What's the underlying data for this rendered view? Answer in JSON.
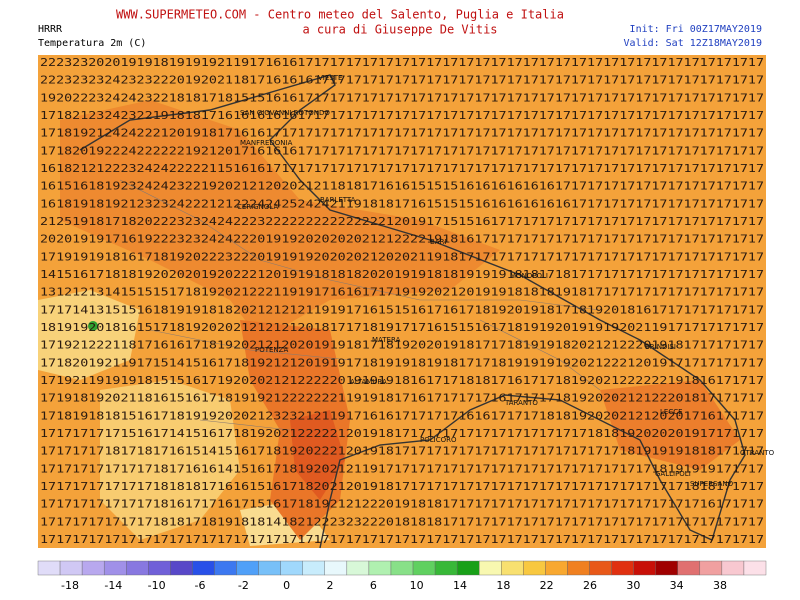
{
  "header": {
    "title": "WWW.SUPERMETEO.COM - Centro meteo del Salento, Puglia e Italia",
    "subtitle": "a cura di Giuseppe De Vitis",
    "model": "HRRR",
    "variable": "Temperatura 2m (C)",
    "init": "Init: Fri 00Z17MAY2019",
    "valid": "Valid: Sat 12Z18MAY2019"
  },
  "map": {
    "grid_rows": [
      "222323202019191819191921191716161717171717171717171717171717171717171717171717171717171717",
      "222323232423232220192021181716161617171717171717171717171717171717171717171717171717171717",
      "192022232424232218181718151516161717171717171717171717171717171717171717171717171717171717",
      "171821232423221918181716161616161717171717171717171717171717171717171717171717171717171717",
      "171819212424222120191817161617171717171717171717171717171717171717171717171717171717171717",
      "171820192224222222192120171616161717171717171717171717171717171717171717171717171717171717",
      "161821212223242422222115161617171717171717171717171717171717171717171717171717171717171717",
      "161516181923242423221920212120202121181817161615151516161616161617171717171717171717171717",
      "161819181921232324222121222424252424211918181716151515161616161616171717171717171717171717",
      "212519181718202223232424222322222222222222212019171515161717171717171717171717171717171717",
      "202019191716192223232424222019192020202021212222191816171717171717171717171717171717171717",
      "171919191816171819202223222019191920202021202021191817171717171717171717171717171717171717",
      "141516171818192020201920222120191918181820201919181819191918181718171717171717171717171717",
      "131212131415151517181920212221191917161617171919202120191918181819181717171717171717171717",
      "171714131515161819191818202121212119191716151516171617181920191817181920181617171717171717",
      "181919201816151718192020212121212018171718191717161515161718191920191919202119171717171717",
      "171921222118171616171819202121202019191817181920201918171718191918202121222019181717171717",
      "171820192119171514151617181921212019191718191918191817171819191919202122212019171717171717",
      "171921191919181515161719202021212222201919191816171718181716171718192021222222191816171717",
      "171918192021181615161718191921222222211919181716171717171617171718192020212122201817171717",
      "171819181815161718191920202123232121191716161717171716161717171818192020212120201716171717",
      "171717171715161714151617181920212222212019181717171717171717171717171818192020201917171717",
      "171717171817181716151415161718192022212019181717171717171717171717171717181919191818171717",
      "171717171717171817161614151617181920212119171717171717171717171717171717171718191919171717",
      "171717171717171818181716161516171820212019181717171717171717171717171717171717171818171717",
      "171717171717171816171716171516171819212122201918181717171717171717171717171717171716171717",
      "171717171717171818171819181814182122232322201818181717171717171717171717171717171717171717",
      "171717171717171717171717171717171717171717171717171717171717171717171717171717171717171717"
    ],
    "cities": [
      "VIESTE",
      "SAN GIOVANNI ROTONDO",
      "MANFREDONIA",
      "CERIGNOLA",
      "BARLETTA",
      "BARI",
      "MONOPOLI",
      "POTENZA",
      "MATERA",
      "ALTAMURA",
      "TARANTO",
      "BRINDISI",
      "LECCE",
      "OTRANTO",
      "GALLIPOLI",
      "SUPERSANO",
      "POLICORO"
    ]
  },
  "legend": {
    "colors": [
      "#e0dcf8",
      "#d0c8f4",
      "#b8a8ee",
      "#a090e8",
      "#8878e0",
      "#7060d8",
      "#5848c8",
      "#2850e8",
      "#3c78f0",
      "#50a0f8",
      "#78c0f8",
      "#a0d8fc",
      "#c8ecfc",
      "#e8f8fc",
      "#d8f8d8",
      "#b0f0b0",
      "#88e088",
      "#60d060",
      "#38b838",
      "#18a018",
      "#f8f8b0",
      "#f8e070",
      "#f8c840",
      "#f8a830",
      "#f08020",
      "#e85818",
      "#e03010",
      "#c81008",
      "#a00000",
      "#e07070",
      "#f0a0a0",
      "#f8c8d0",
      "#fce0e8"
    ],
    "labels": [
      -18,
      -14,
      -10,
      -6,
      -2,
      0,
      2,
      6,
      10,
      14,
      18,
      22,
      26,
      30,
      34,
      38
    ]
  }
}
